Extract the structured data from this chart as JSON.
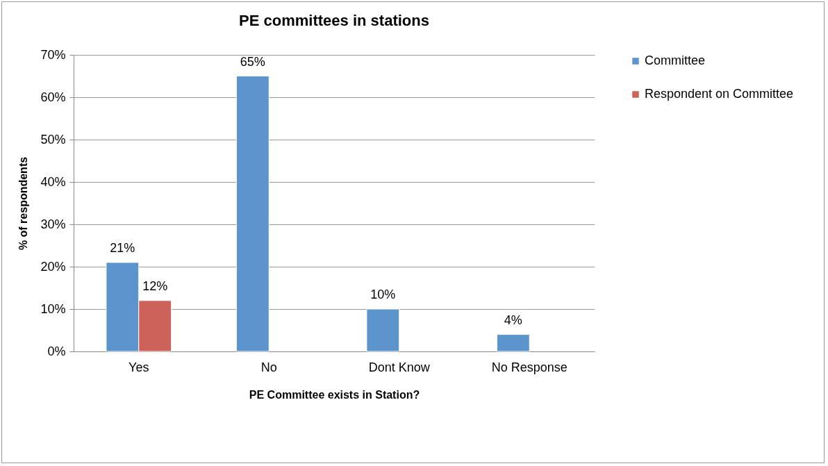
{
  "chart_data": {
    "type": "bar",
    "title": "PE committees in stations",
    "xlabel": "PE Committee exists in Station?",
    "ylabel": "% of respondents",
    "categories": [
      "Yes",
      "No",
      "Dont Know",
      "No Response"
    ],
    "series": [
      {
        "name": "Committee",
        "color": "#5b95cc",
        "values": [
          21,
          65,
          10,
          4
        ],
        "value_labels": [
          "21%",
          "65%",
          "10%",
          "4%"
        ]
      },
      {
        "name": "Respondent on Committee",
        "color": "#cc625a",
        "values": [
          12,
          null,
          null,
          null
        ],
        "value_labels": [
          "12%",
          null,
          null,
          null
        ]
      }
    ],
    "ylim": [
      0,
      70
    ],
    "yticks": [
      {
        "value": 0,
        "label": "0%"
      },
      {
        "value": 10,
        "label": "10%"
      },
      {
        "value": 20,
        "label": "20%"
      },
      {
        "value": 30,
        "label": "30%"
      },
      {
        "value": 40,
        "label": "40%"
      },
      {
        "value": 50,
        "label": "50%"
      },
      {
        "value": 60,
        "label": "60%"
      },
      {
        "value": 70,
        "label": "70%"
      }
    ],
    "grid": "y",
    "legend": "right"
  }
}
